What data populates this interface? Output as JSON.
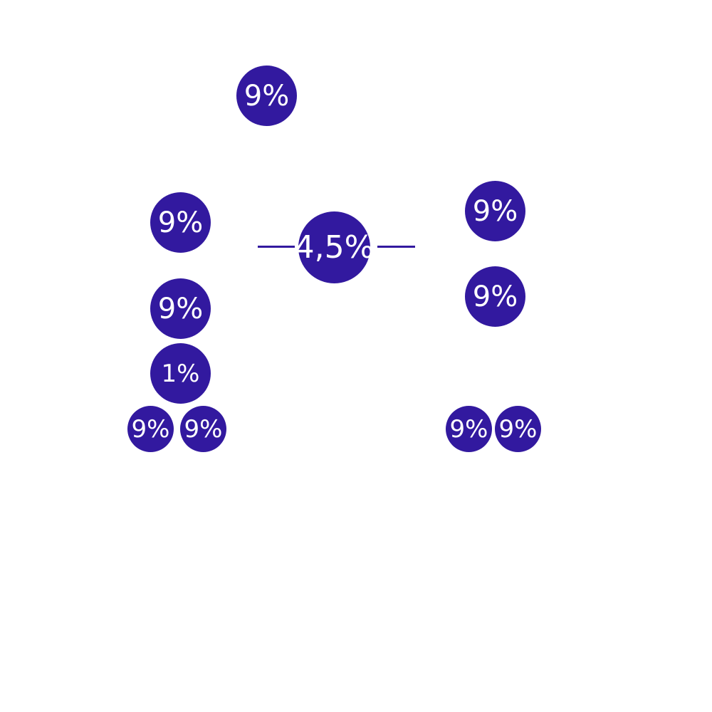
{
  "colors": {
    "badge_fill": "#32199f",
    "badge_text": "#ffffff",
    "rule": "#32199f",
    "background": "#ffffff"
  },
  "badges": {
    "top": "9%",
    "left_1": "9%",
    "left_2": "9%",
    "left_3": "1%",
    "left_4a": "9%",
    "left_4b": "9%",
    "center": "4,5%",
    "right_1": "9%",
    "right_2": "9%",
    "right_3a": "9%",
    "right_3b": "9%"
  }
}
